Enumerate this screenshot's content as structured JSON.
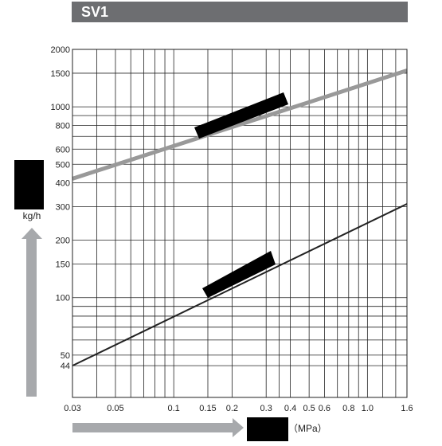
{
  "chart_data": {
    "type": "line",
    "title": "SV1",
    "ylabel": "kg/h",
    "xlabel": "（MPa）",
    "xscale": "log",
    "yscale": "log",
    "x": [
      0.03,
      1.6
    ],
    "series": [
      {
        "color": "#999999",
        "values": [
          420,
          1550
        ]
      },
      {
        "color": "#222222",
        "values": [
          44,
          310
        ]
      }
    ],
    "xlim": [
      0.03,
      1.6
    ],
    "xticks": [
      0.03,
      0.05,
      0.1,
      0.15,
      0.2,
      0.3,
      0.4,
      0.5,
      0.6,
      0.8,
      {
        "value": 1,
        "label": "1.0"
      },
      1.6
    ],
    "xgrid": [
      0.04,
      0.06,
      0.07,
      0.08,
      0.09,
      0.35,
      0.7,
      0.9,
      1.2,
      1.4
    ],
    "ylim": [
      30,
      2000
    ],
    "yticks": [
      44,
      50,
      100,
      150,
      200,
      300,
      400,
      500,
      600,
      800,
      1000,
      1500,
      2000
    ],
    "ygrid": [
      60,
      70,
      80,
      90,
      700,
      900
    ],
    "grid": true
  }
}
